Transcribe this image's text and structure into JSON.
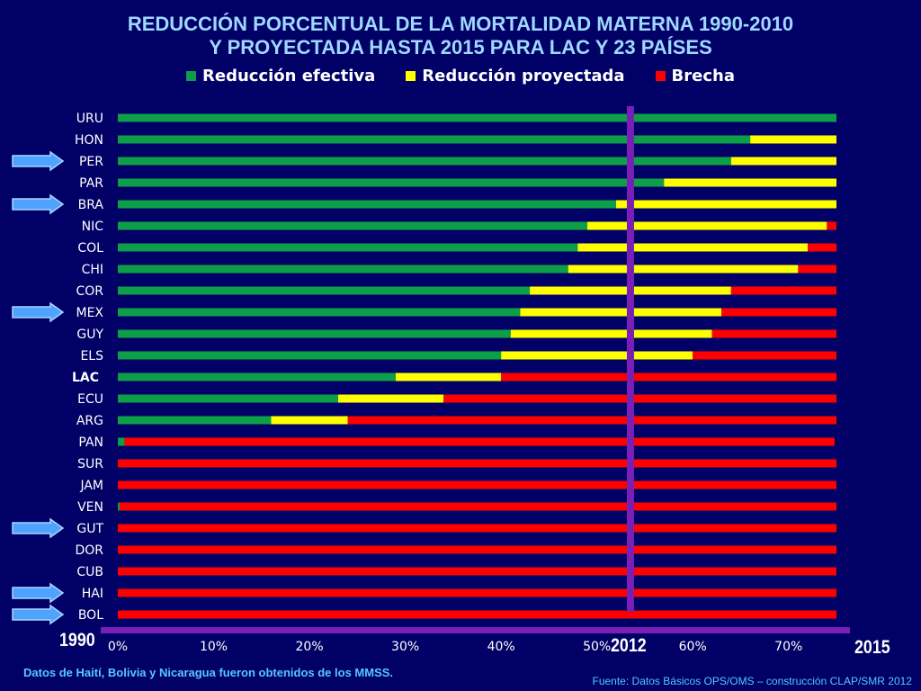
{
  "title_line1": "REDUCCIÓN PORCENTUAL DE LA MORTALIDAD MATERNA 1990-2010",
  "title_line2": "Y PROYECTADA HASTA 2015 PARA LAC Y 23 PAÍSES",
  "legend": [
    {
      "label": "Reducción efectiva",
      "color": "#0d9f47"
    },
    {
      "label": "Reducción proyectada",
      "color": "#ffff00"
    },
    {
      "label": "Brecha",
      "color": "#ff0000"
    }
  ],
  "year_labels": {
    "start": "1990",
    "marker": "2012",
    "end": "2015"
  },
  "marker_color": "#7a1fb5",
  "arrow_color": "#4fa3ff",
  "highlighted_countries": [
    "PER",
    "BRA",
    "MEX",
    "GUT",
    "HAI",
    "BOL"
  ],
  "note_left": "Datos de Haití,  Bolivia y Nicaragua fueron obtenidos de los MMSS.",
  "note_right": "Fuente: Datos Básicos OPS/OMS – construcción CLAP/SMR 2012",
  "chart_data": {
    "type": "bar",
    "orientation": "horizontal",
    "stacked": true,
    "xlim": [
      0,
      75
    ],
    "x_ticks": [
      "0%",
      "10%",
      "20%",
      "30%",
      "40%",
      "50%",
      "60%",
      "70%"
    ],
    "x_tick_values": [
      0,
      10,
      20,
      30,
      40,
      50,
      60,
      70
    ],
    "marker_value": 53.5,
    "categories": [
      "URU",
      "HON",
      "PER",
      "PAR",
      "BRA",
      "NIC",
      "COL",
      "CHI",
      "COR",
      "MEX",
      "GUY",
      "ELS",
      "LAC",
      "ECU",
      "ARG",
      "PAN",
      "SUR",
      "JAM",
      "VEN",
      "GUT",
      "DOR",
      "CUB",
      "HAI",
      "BOL"
    ],
    "series": [
      {
        "name": "Reducción efectiva",
        "color": "#0d9f47",
        "values": [
          75,
          66,
          64,
          57,
          52,
          49,
          48,
          47,
          43,
          42,
          41,
          40,
          29,
          23,
          16,
          0.7,
          0,
          0,
          0.2,
          0,
          0,
          0,
          0,
          0
        ]
      },
      {
        "name": "Reducción proyectada",
        "color": "#ffff00",
        "values": [
          0,
          9,
          11,
          18,
          23,
          25,
          24,
          24,
          21,
          21,
          21,
          20,
          11,
          11,
          8,
          0,
          0,
          0,
          0,
          0,
          0,
          0,
          0,
          0
        ]
      },
      {
        "name": "Brecha",
        "color": "#ff0000",
        "values": [
          0,
          0,
          0,
          0,
          0,
          1,
          3,
          4,
          11,
          12,
          13,
          15,
          35,
          41,
          51,
          74.1,
          75,
          75,
          74.8,
          75,
          75,
          75,
          75,
          75
        ]
      }
    ]
  }
}
